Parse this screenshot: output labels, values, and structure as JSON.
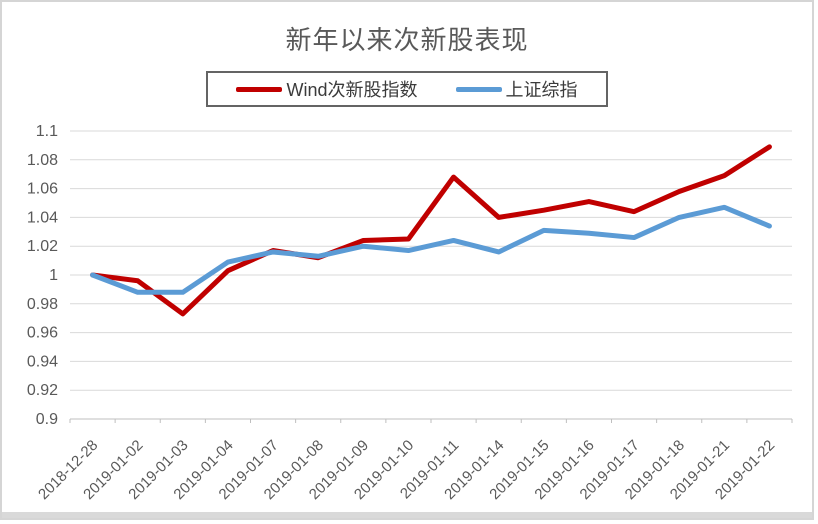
{
  "page": {
    "background": "#ffffff",
    "border_color": "#d5d5d5",
    "bottom_strip_color": "#d9d9d9"
  },
  "chart_data": {
    "type": "line",
    "title": "新年以来次新股表现",
    "xlabel": "",
    "ylabel": "",
    "ylim": [
      0.9,
      1.1
    ],
    "ytick_step": 0.02,
    "ytick_labels": [
      "1.1",
      "1.08",
      "1.06",
      "1.04",
      "1.02",
      "1",
      "0.98",
      "0.96",
      "0.94",
      "0.92",
      "0.9"
    ],
    "grid": true,
    "legend_position": "top",
    "categories": [
      "2018-12-28",
      "2019-01-02",
      "2019-01-03",
      "2019-01-04",
      "2019-01-07",
      "2019-01-08",
      "2019-01-09",
      "2019-01-10",
      "2019-01-11",
      "2019-01-14",
      "2019-01-15",
      "2019-01-16",
      "2019-01-17",
      "2019-01-18",
      "2019-01-21",
      "2019-01-22"
    ],
    "series": [
      {
        "name": "Wind次新股指数",
        "color": "#C00000",
        "values": [
          1.0,
          0.996,
          0.973,
          1.003,
          1.017,
          1.012,
          1.024,
          1.025,
          1.068,
          1.04,
          1.045,
          1.051,
          1.044,
          1.058,
          1.069,
          1.089
        ]
      },
      {
        "name": "上证综指",
        "color": "#5B9BD5",
        "values": [
          1.0,
          0.988,
          0.988,
          1.009,
          1.016,
          1.013,
          1.02,
          1.017,
          1.024,
          1.016,
          1.031,
          1.029,
          1.026,
          1.04,
          1.047,
          1.034
        ]
      }
    ],
    "colors": {
      "gridline": "#d9d9d9",
      "axis": "#bfbfbf",
      "tick_label": "#595959",
      "title": "#595959"
    }
  }
}
